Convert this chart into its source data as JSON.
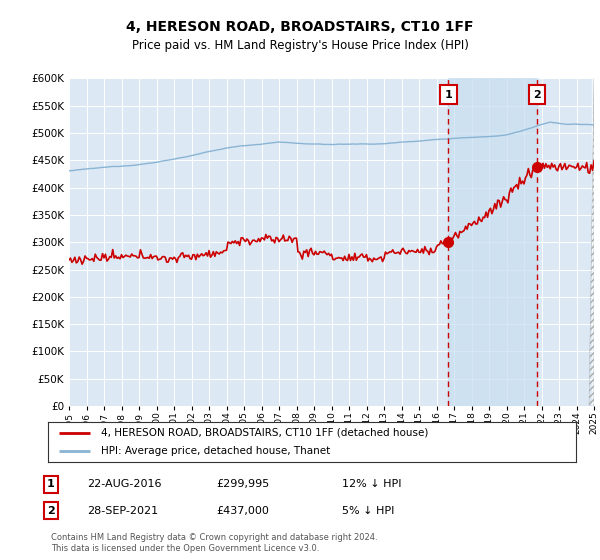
{
  "title": "4, HERESON ROAD, BROADSTAIRS, CT10 1FF",
  "subtitle": "Price paid vs. HM Land Registry's House Price Index (HPI)",
  "legend_line1": "4, HERESON ROAD, BROADSTAIRS, CT10 1FF (detached house)",
  "legend_line2": "HPI: Average price, detached house, Thanet",
  "annotation1_date": "22-AUG-2016",
  "annotation1_price": "£299,995",
  "annotation1_hpi": "12% ↓ HPI",
  "annotation1_year": 2016.67,
  "annotation1_value": 299995,
  "annotation2_date": "28-SEP-2021",
  "annotation2_price": "£437,000",
  "annotation2_hpi": "5% ↓ HPI",
  "annotation2_year": 2021.75,
  "annotation2_value": 437000,
  "footer": "Contains HM Land Registry data © Crown copyright and database right 2024.\nThis data is licensed under the Open Government Licence v3.0.",
  "hpi_color": "#8ab4d4",
  "price_color": "#cc0000",
  "dot_color": "#cc0000",
  "plot_bg_color": "#dce9f5",
  "shade_color": "#c8dff0",
  "ylim": [
    0,
    600000
  ],
  "yticks": [
    0,
    50000,
    100000,
    150000,
    200000,
    250000,
    300000,
    350000,
    400000,
    450000,
    500000,
    550000,
    600000
  ],
  "x_start_year": 1995,
  "x_end_year": 2025,
  "grid_color": "#ffffff",
  "vline_color": "#cc0000"
}
